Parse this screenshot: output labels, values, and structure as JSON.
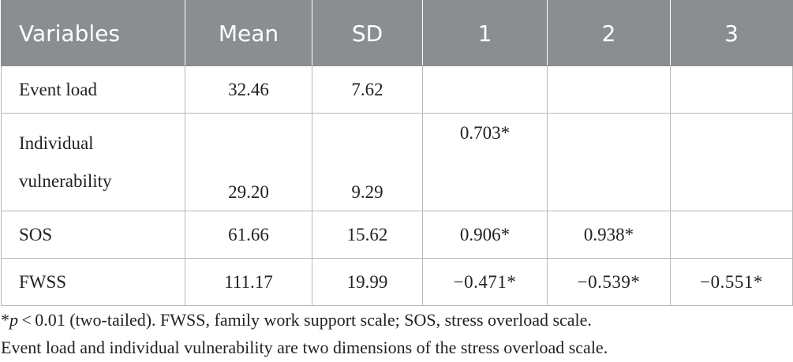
{
  "table": {
    "headers": [
      "Variables",
      "Mean",
      "SD",
      "1",
      "2",
      "3"
    ],
    "rows": [
      {
        "variable": "Event load",
        "mean": "32.46",
        "sd": "7.62",
        "c1": "",
        "c2": "",
        "c3": ""
      },
      {
        "variable": "Individual vulnerability",
        "mean": "29.20",
        "sd": "9.29",
        "c1": "0.703*",
        "c2": "",
        "c3": ""
      },
      {
        "variable": "SOS",
        "mean": "61.66",
        "sd": "15.62",
        "c1": "0.906*",
        "c2": "0.938*",
        "c3": ""
      },
      {
        "variable": "FWSS",
        "mean": "111.17",
        "sd": "19.99",
        "c1": "−0.471*",
        "c2": "−0.539*",
        "c3": "−0.551*"
      }
    ]
  },
  "footnote": {
    "star": "*",
    "p": "p",
    "line1_rest": " < 0.01 (two-tailed). FWSS, family work support scale; SOS, stress overload scale.",
    "line2": "Event load and individual vulnerability are two dimensions of the stress overload scale."
  }
}
